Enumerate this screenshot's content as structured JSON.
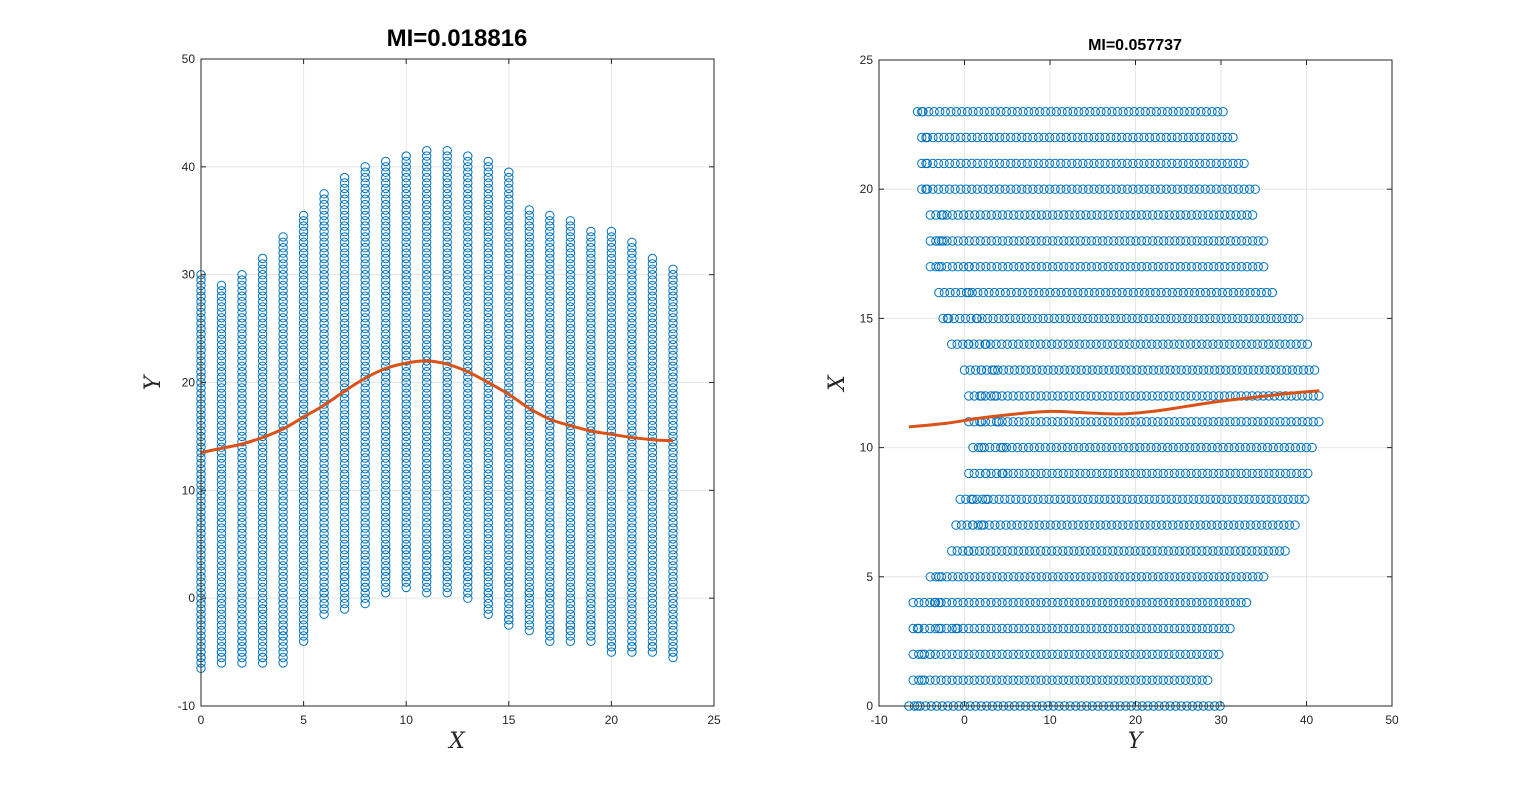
{
  "chart_data": [
    {
      "type": "scatter",
      "title": "MI=0.018816",
      "xlabel": "X",
      "ylabel": "Y",
      "xlim": [
        0,
        25
      ],
      "ylim": [
        -10,
        50
      ],
      "xticks": [
        0,
        5,
        10,
        15,
        20,
        25
      ],
      "yticks": [
        -10,
        0,
        10,
        20,
        30,
        40,
        50
      ],
      "grid": true,
      "scatter_color": "#0072bd",
      "curve_color": "#d95319",
      "scatter_columns": [
        {
          "x": 0,
          "ymin": -6.5,
          "ymax": 30,
          "outliers": [
            -5.5
          ]
        },
        {
          "x": 1,
          "ymin": -6,
          "ymax": 29,
          "outliers": [
            -5
          ]
        },
        {
          "x": 2,
          "ymin": -6,
          "ymax": 30,
          "outliers": [
            -5,
            -4
          ]
        },
        {
          "x": 3,
          "ymin": -6,
          "ymax": 31.5,
          "outliers": [
            -5.5,
            -3,
            -1
          ]
        },
        {
          "x": 4,
          "ymin": -6,
          "ymax": 33.5,
          "outliers": [
            -3.5,
            -3
          ]
        },
        {
          "x": 5,
          "ymin": -4,
          "ymax": 35.5,
          "outliers": [
            -3
          ]
        },
        {
          "x": 6,
          "ymin": -1.5,
          "ymax": 37.5,
          "outliers": [
            0.5
          ]
        },
        {
          "x": 7,
          "ymin": -1,
          "ymax": 39,
          "outliers": [
            1,
            2
          ]
        },
        {
          "x": 8,
          "ymin": -0.5,
          "ymax": 40,
          "outliers": [
            1,
            2.5
          ]
        },
        {
          "x": 9,
          "ymin": 0.5,
          "ymax": 40.5,
          "outliers": [
            2.5,
            4.5
          ]
        },
        {
          "x": 10,
          "ymin": 1,
          "ymax": 41,
          "outliers": [
            2,
            4.5
          ]
        },
        {
          "x": 11,
          "ymin": 0.5,
          "ymax": 41.5,
          "outliers": [
            2,
            4
          ]
        },
        {
          "x": 12,
          "ymin": 0.5,
          "ymax": 41.5,
          "outliers": [
            2,
            3.5
          ]
        },
        {
          "x": 13,
          "ymin": 0,
          "ymax": 41,
          "outliers": [
            2,
            3.5
          ]
        },
        {
          "x": 14,
          "ymin": -1.5,
          "ymax": 40.5,
          "outliers": [
            0.5,
            2.5
          ]
        },
        {
          "x": 15,
          "ymin": -2.5,
          "ymax": 39.5,
          "outliers": [
            -2,
            1.5
          ]
        },
        {
          "x": 16,
          "ymin": -3,
          "ymax": 36,
          "outliers": [
            0.5
          ]
        },
        {
          "x": 17,
          "ymin": -4,
          "ymax": 35.5,
          "outliers": [
            -3,
            0.5
          ]
        },
        {
          "x": 18,
          "ymin": -4,
          "ymax": 35,
          "outliers": [
            -3,
            -2.5
          ]
        },
        {
          "x": 19,
          "ymin": -4,
          "ymax": 34,
          "outliers": [
            -2.5
          ]
        },
        {
          "x": 20,
          "ymin": -5,
          "ymax": 34,
          "outliers": [
            -4.5
          ]
        },
        {
          "x": 21,
          "ymin": -5,
          "ymax": 33,
          "outliers": [
            -4.5
          ]
        },
        {
          "x": 22,
          "ymin": -5,
          "ymax": 31.5,
          "outliers": [
            -4.5
          ]
        },
        {
          "x": 23,
          "ymin": -5.5,
          "ymax": 30.5,
          "outliers": [
            -5
          ]
        }
      ],
      "curve": {
        "x": [
          0,
          1,
          2,
          3,
          4,
          5,
          6,
          7,
          8,
          9,
          10,
          11,
          12,
          13,
          14,
          15,
          16,
          17,
          18,
          19,
          20,
          21,
          22,
          23
        ],
        "y": [
          13.5,
          13.9,
          14.3,
          14.9,
          15.7,
          16.8,
          17.9,
          19.2,
          20.4,
          21.3,
          21.8,
          22.0,
          21.7,
          21.0,
          20.0,
          18.9,
          17.6,
          16.6,
          16.0,
          15.5,
          15.2,
          14.9,
          14.7,
          14.6
        ]
      }
    },
    {
      "type": "scatter",
      "title": "MI=0.057737",
      "xlabel": "Y",
      "ylabel": "X",
      "xlim": [
        -10,
        50
      ],
      "ylim": [
        0,
        25
      ],
      "xticks": [
        -10,
        0,
        10,
        20,
        30,
        40,
        50
      ],
      "yticks": [
        0,
        5,
        10,
        15,
        20,
        25
      ],
      "grid": true,
      "scatter_color": "#0072bd",
      "curve_color": "#d95319",
      "scatter_rows": [
        {
          "y": 0,
          "xmin": -6.5,
          "xmax": 30,
          "outliers": [
            -5.5
          ]
        },
        {
          "y": 1,
          "xmin": -6,
          "xmax": 29,
          "outliers": [
            -5
          ]
        },
        {
          "y": 2,
          "xmin": -6,
          "xmax": 30,
          "outliers": [
            -5,
            -4
          ]
        },
        {
          "y": 3,
          "xmin": -6,
          "xmax": 31.5,
          "outliers": [
            -5.5,
            -3,
            -1
          ]
        },
        {
          "y": 4,
          "xmin": -6,
          "xmax": 33.5,
          "outliers": [
            -3.5,
            -3
          ]
        },
        {
          "y": 5,
          "xmin": -4,
          "xmax": 35.5,
          "outliers": [
            -3
          ]
        },
        {
          "y": 6,
          "xmin": -1.5,
          "xmax": 37.5,
          "outliers": [
            0.5
          ]
        },
        {
          "y": 7,
          "xmin": -1,
          "xmax": 39,
          "outliers": [
            1,
            2
          ]
        },
        {
          "y": 8,
          "xmin": -0.5,
          "xmax": 40,
          "outliers": [
            1,
            2.5
          ]
        },
        {
          "y": 9,
          "xmin": 0.5,
          "xmax": 40.5,
          "outliers": [
            2.5,
            4.5
          ]
        },
        {
          "y": 10,
          "xmin": 1,
          "xmax": 41,
          "outliers": [
            2,
            4.5
          ]
        },
        {
          "y": 11,
          "xmin": 0.5,
          "xmax": 41.5,
          "outliers": [
            2,
            4
          ]
        },
        {
          "y": 12,
          "xmin": 0.5,
          "xmax": 41.5,
          "outliers": [
            2,
            3.5
          ]
        },
        {
          "y": 13,
          "xmin": 0,
          "xmax": 41,
          "outliers": [
            2,
            3.5
          ]
        },
        {
          "y": 14,
          "xmin": -1.5,
          "xmax": 40.5,
          "outliers": [
            0.5,
            2.5
          ]
        },
        {
          "y": 15,
          "xmin": -2.5,
          "xmax": 39.5,
          "outliers": [
            -2,
            1.5
          ]
        },
        {
          "y": 16,
          "xmin": -3,
          "xmax": 36,
          "outliers": [
            0.5
          ]
        },
        {
          "y": 17,
          "xmin": -4,
          "xmax": 35.5,
          "outliers": [
            -3,
            0.5
          ]
        },
        {
          "y": 18,
          "xmin": -4,
          "xmax": 35,
          "outliers": [
            -3,
            -2.5
          ]
        },
        {
          "y": 19,
          "xmin": -4,
          "xmax": 34,
          "outliers": [
            -2.5
          ]
        },
        {
          "y": 20,
          "xmin": -5,
          "xmax": 34,
          "outliers": [
            -4.5
          ]
        },
        {
          "y": 21,
          "xmin": -5,
          "xmax": 33,
          "outliers": [
            -4.5
          ]
        },
        {
          "y": 22,
          "xmin": -5,
          "xmax": 31.5,
          "outliers": [
            -4.5
          ]
        },
        {
          "y": 23,
          "xmin": -5.5,
          "xmax": 30.5,
          "outliers": [
            -5
          ]
        }
      ],
      "curve": {
        "x": [
          -6.5,
          -2,
          2,
          6,
          10,
          14,
          18,
          22,
          26,
          30,
          34,
          38,
          41.5
        ],
        "y": [
          10.8,
          10.95,
          11.15,
          11.3,
          11.4,
          11.35,
          11.3,
          11.4,
          11.6,
          11.8,
          11.95,
          12.1,
          12.2
        ]
      }
    }
  ]
}
